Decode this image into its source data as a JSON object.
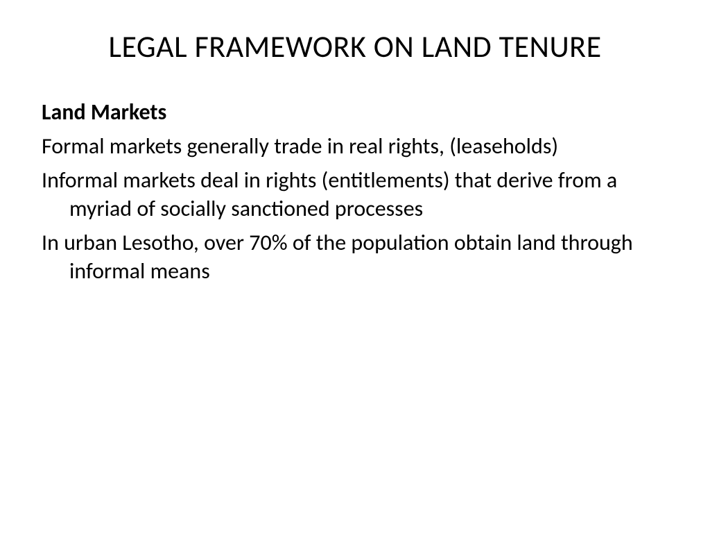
{
  "slide": {
    "title": "LEGAL FRAMEWORK ON LAND TENURE",
    "subheading": "Land Markets",
    "paragraphs": [
      "Formal markets generally trade in real rights, (leaseholds)",
      "Informal markets deal in rights (entitlements) that derive from a myriad of socially sanctioned processes",
      "In urban Lesotho, over 70% of the population obtain land through informal means"
    ],
    "background_color": "#ffffff",
    "text_color": "#000000",
    "title_fontsize": 44,
    "body_fontsize": 32,
    "font_family": "Calibri"
  }
}
